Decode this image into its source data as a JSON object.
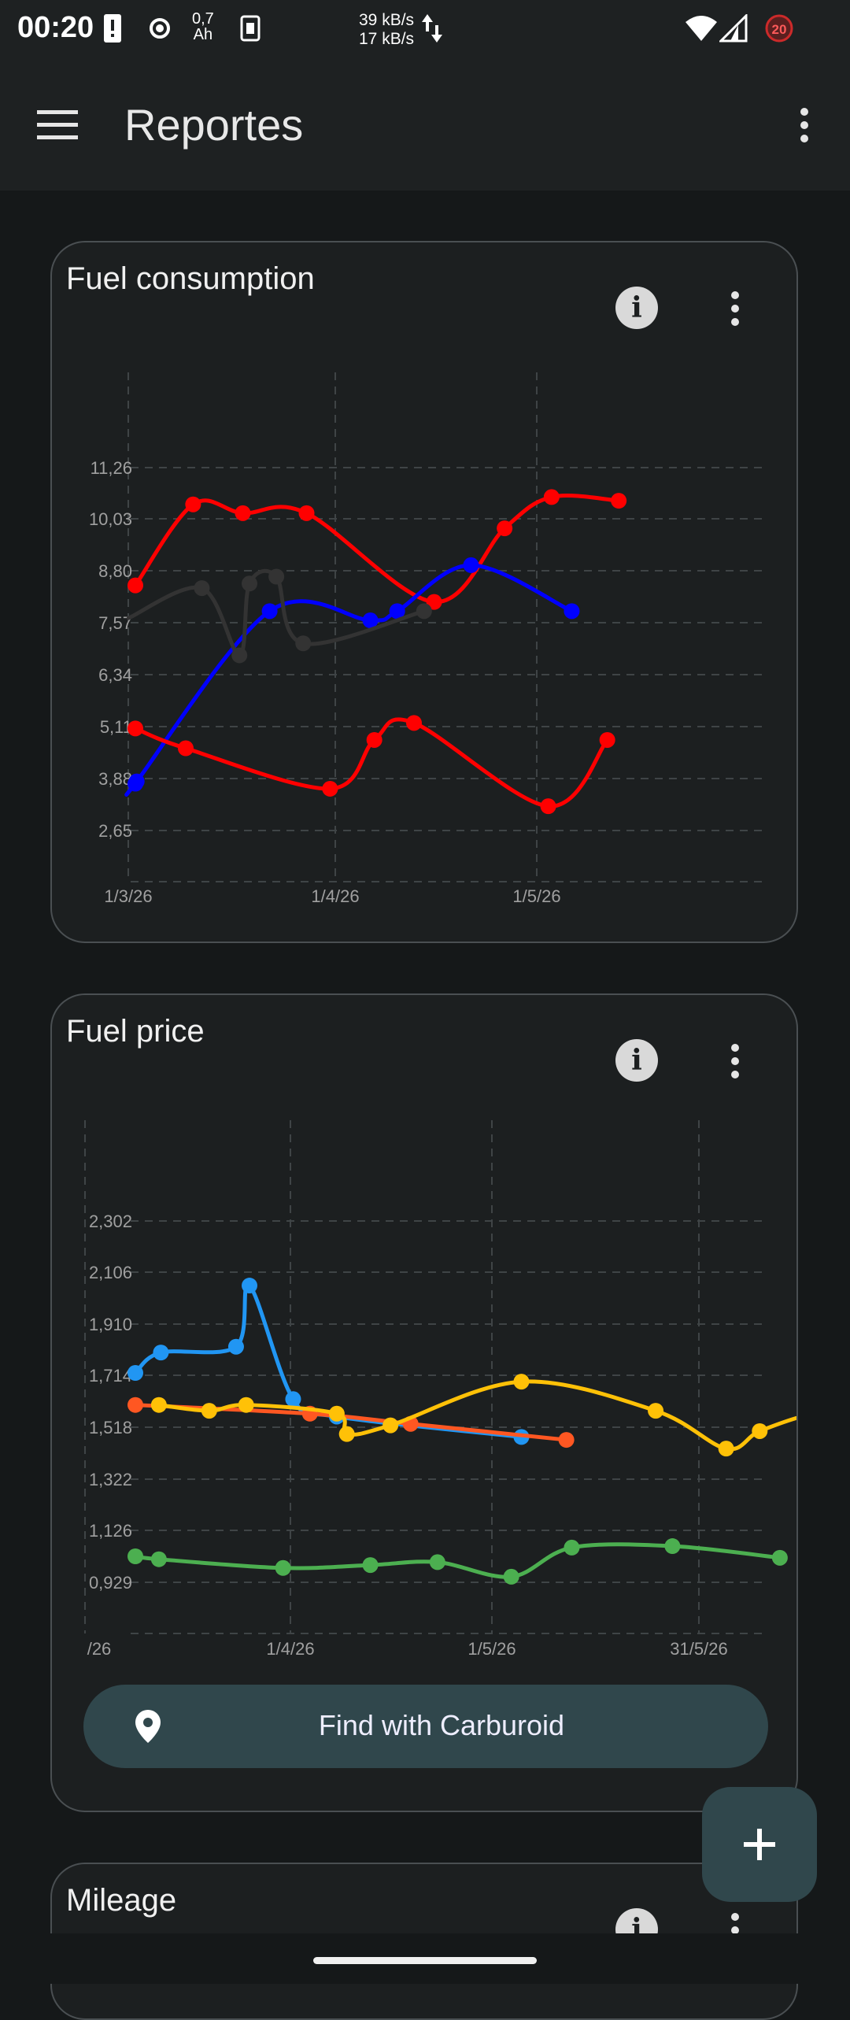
{
  "status_bar": {
    "time": "00:20",
    "battery_text": "0,7\nAh",
    "net_up": "39 kB/s",
    "net_down": "17 kB/s",
    "notification_count": "20"
  },
  "app_bar": {
    "title": "Reportes",
    "menu_icon": "hamburger-menu-icon",
    "overflow_icon": "more-vert-icon"
  },
  "fuel_consumption": {
    "title": "Fuel consumption",
    "chart_data": {
      "type": "line",
      "y_ticks": [
        "11,26",
        "10,03",
        "8,80",
        "7,57",
        "6,34",
        "5,11",
        "3,88",
        "2,65"
      ],
      "x_ticks": [
        "1/3/26",
        "1/4/26",
        "1/5/26"
      ],
      "ylim": [
        1.42,
        12.49
      ],
      "grid": true,
      "series": [
        {
          "color": "#ff0000",
          "points": [
            [
              0,
              7.86
            ],
            [
              8.6,
              9.62
            ],
            [
              16,
              9.43
            ],
            [
              25.5,
              9.43
            ],
            [
              44.5,
              7.5
            ],
            [
              55,
              9.1
            ],
            [
              62,
              9.78
            ],
            [
              72,
              9.7
            ]
          ]
        },
        {
          "color": "#0000ff",
          "points": [
            [
              0,
              3.55
            ],
            [
              0.2,
              3.6
            ],
            [
              20,
              7.3
            ],
            [
              35,
              7.1
            ],
            [
              39,
              7.3
            ],
            [
              50,
              8.3
            ],
            [
              65,
              7.3
            ]
          ]
        },
        {
          "color": "#333333",
          "points": [
            [
              -1,
              7.15
            ],
            [
              9.9,
              7.8
            ],
            [
              15.5,
              6.34
            ],
            [
              17,
              7.9
            ],
            [
              21,
              8.05
            ],
            [
              25,
              6.6
            ],
            [
              43,
              7.3
            ]
          ]
        },
        {
          "color": "#ff0000",
          "points": [
            [
              0,
              4.75
            ],
            [
              7.5,
              4.32
            ],
            [
              29,
              3.44
            ],
            [
              35.6,
              4.5
            ],
            [
              41.5,
              4.87
            ],
            [
              61.5,
              3.06
            ],
            [
              70.3,
              4.5
            ]
          ]
        }
      ]
    }
  },
  "fuel_price": {
    "title": "Fuel price",
    "find_button": "Find with Carburoid",
    "chart_data": {
      "type": "line",
      "y_ticks": [
        "2,302",
        "2,106",
        "1,910",
        "1,714",
        "1,518",
        "1,322",
        "1,126",
        "0,929"
      ],
      "x_ticks": [
        "/26",
        "1/4/26",
        "1/5/26",
        "31/5/26"
      ],
      "ylim": [
        0.735,
        2.498
      ],
      "grid": true,
      "series": [
        {
          "color": "#2196f3",
          "points": [
            [
              0,
              1.63
            ],
            [
              3.8,
              1.7
            ],
            [
              15,
              1.72
            ],
            [
              17,
              1.93
            ],
            [
              23.5,
              1.54
            ],
            [
              30,
              1.48
            ],
            [
              57.5,
              1.41
            ]
          ]
        },
        {
          "color": "#ff5722",
          "points": [
            [
              0,
              1.52
            ],
            [
              26,
              1.49
            ],
            [
              41,
              1.455
            ],
            [
              64.2,
              1.4
            ]
          ]
        },
        {
          "color": "#ffc107",
          "points": [
            [
              3.5,
              1.52
            ],
            [
              11,
              1.5
            ],
            [
              16.5,
              1.52
            ],
            [
              30,
              1.49
            ],
            [
              31.5,
              1.42
            ],
            [
              38,
              1.45
            ],
            [
              57.5,
              1.6
            ],
            [
              77.5,
              1.5
            ],
            [
              88,
              1.37
            ],
            [
              93,
              1.43
            ],
            [
              101,
              1.49
            ],
            [
              108,
              1.5
            ]
          ]
        },
        {
          "color": "#4caf50",
          "points": [
            [
              0,
              1.0
            ],
            [
              3.5,
              0.99
            ],
            [
              22,
              0.96
            ],
            [
              35,
              0.97
            ],
            [
              45,
              0.98
            ],
            [
              56,
              0.93
            ],
            [
              65,
              1.03
            ],
            [
              80,
              1.035
            ],
            [
              96,
              0.995
            ]
          ]
        }
      ]
    }
  },
  "mileage": {
    "title": "Mileage"
  },
  "fab": {
    "icon": "add-icon"
  }
}
